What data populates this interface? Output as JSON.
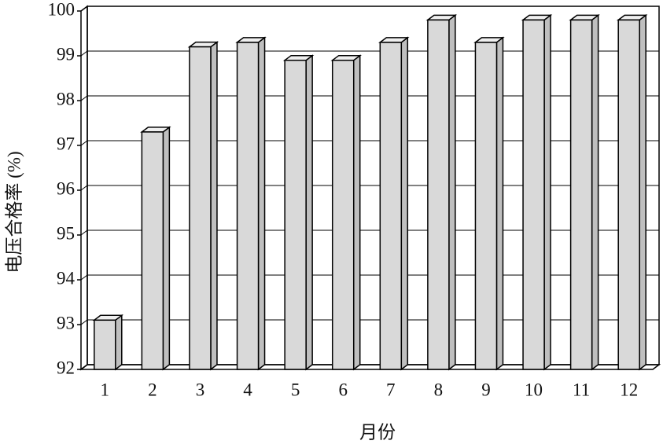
{
  "chart_data": {
    "type": "bar",
    "x_label": "月份",
    "y_label": "电压合格率 (%)",
    "categories": [
      "1",
      "2",
      "3",
      "4",
      "5",
      "6",
      "7",
      "8",
      "9",
      "10",
      "11",
      "12"
    ],
    "values": [
      93.1,
      97.3,
      99.2,
      99.3,
      98.9,
      98.9,
      99.3,
      99.8,
      99.3,
      99.8,
      99.8,
      99.8
    ],
    "color": "#d9d9d9",
    "ylim": [
      92,
      100
    ],
    "yticks": [
      92,
      93,
      94,
      95,
      96,
      97,
      98,
      99,
      100
    ],
    "grid": true
  }
}
